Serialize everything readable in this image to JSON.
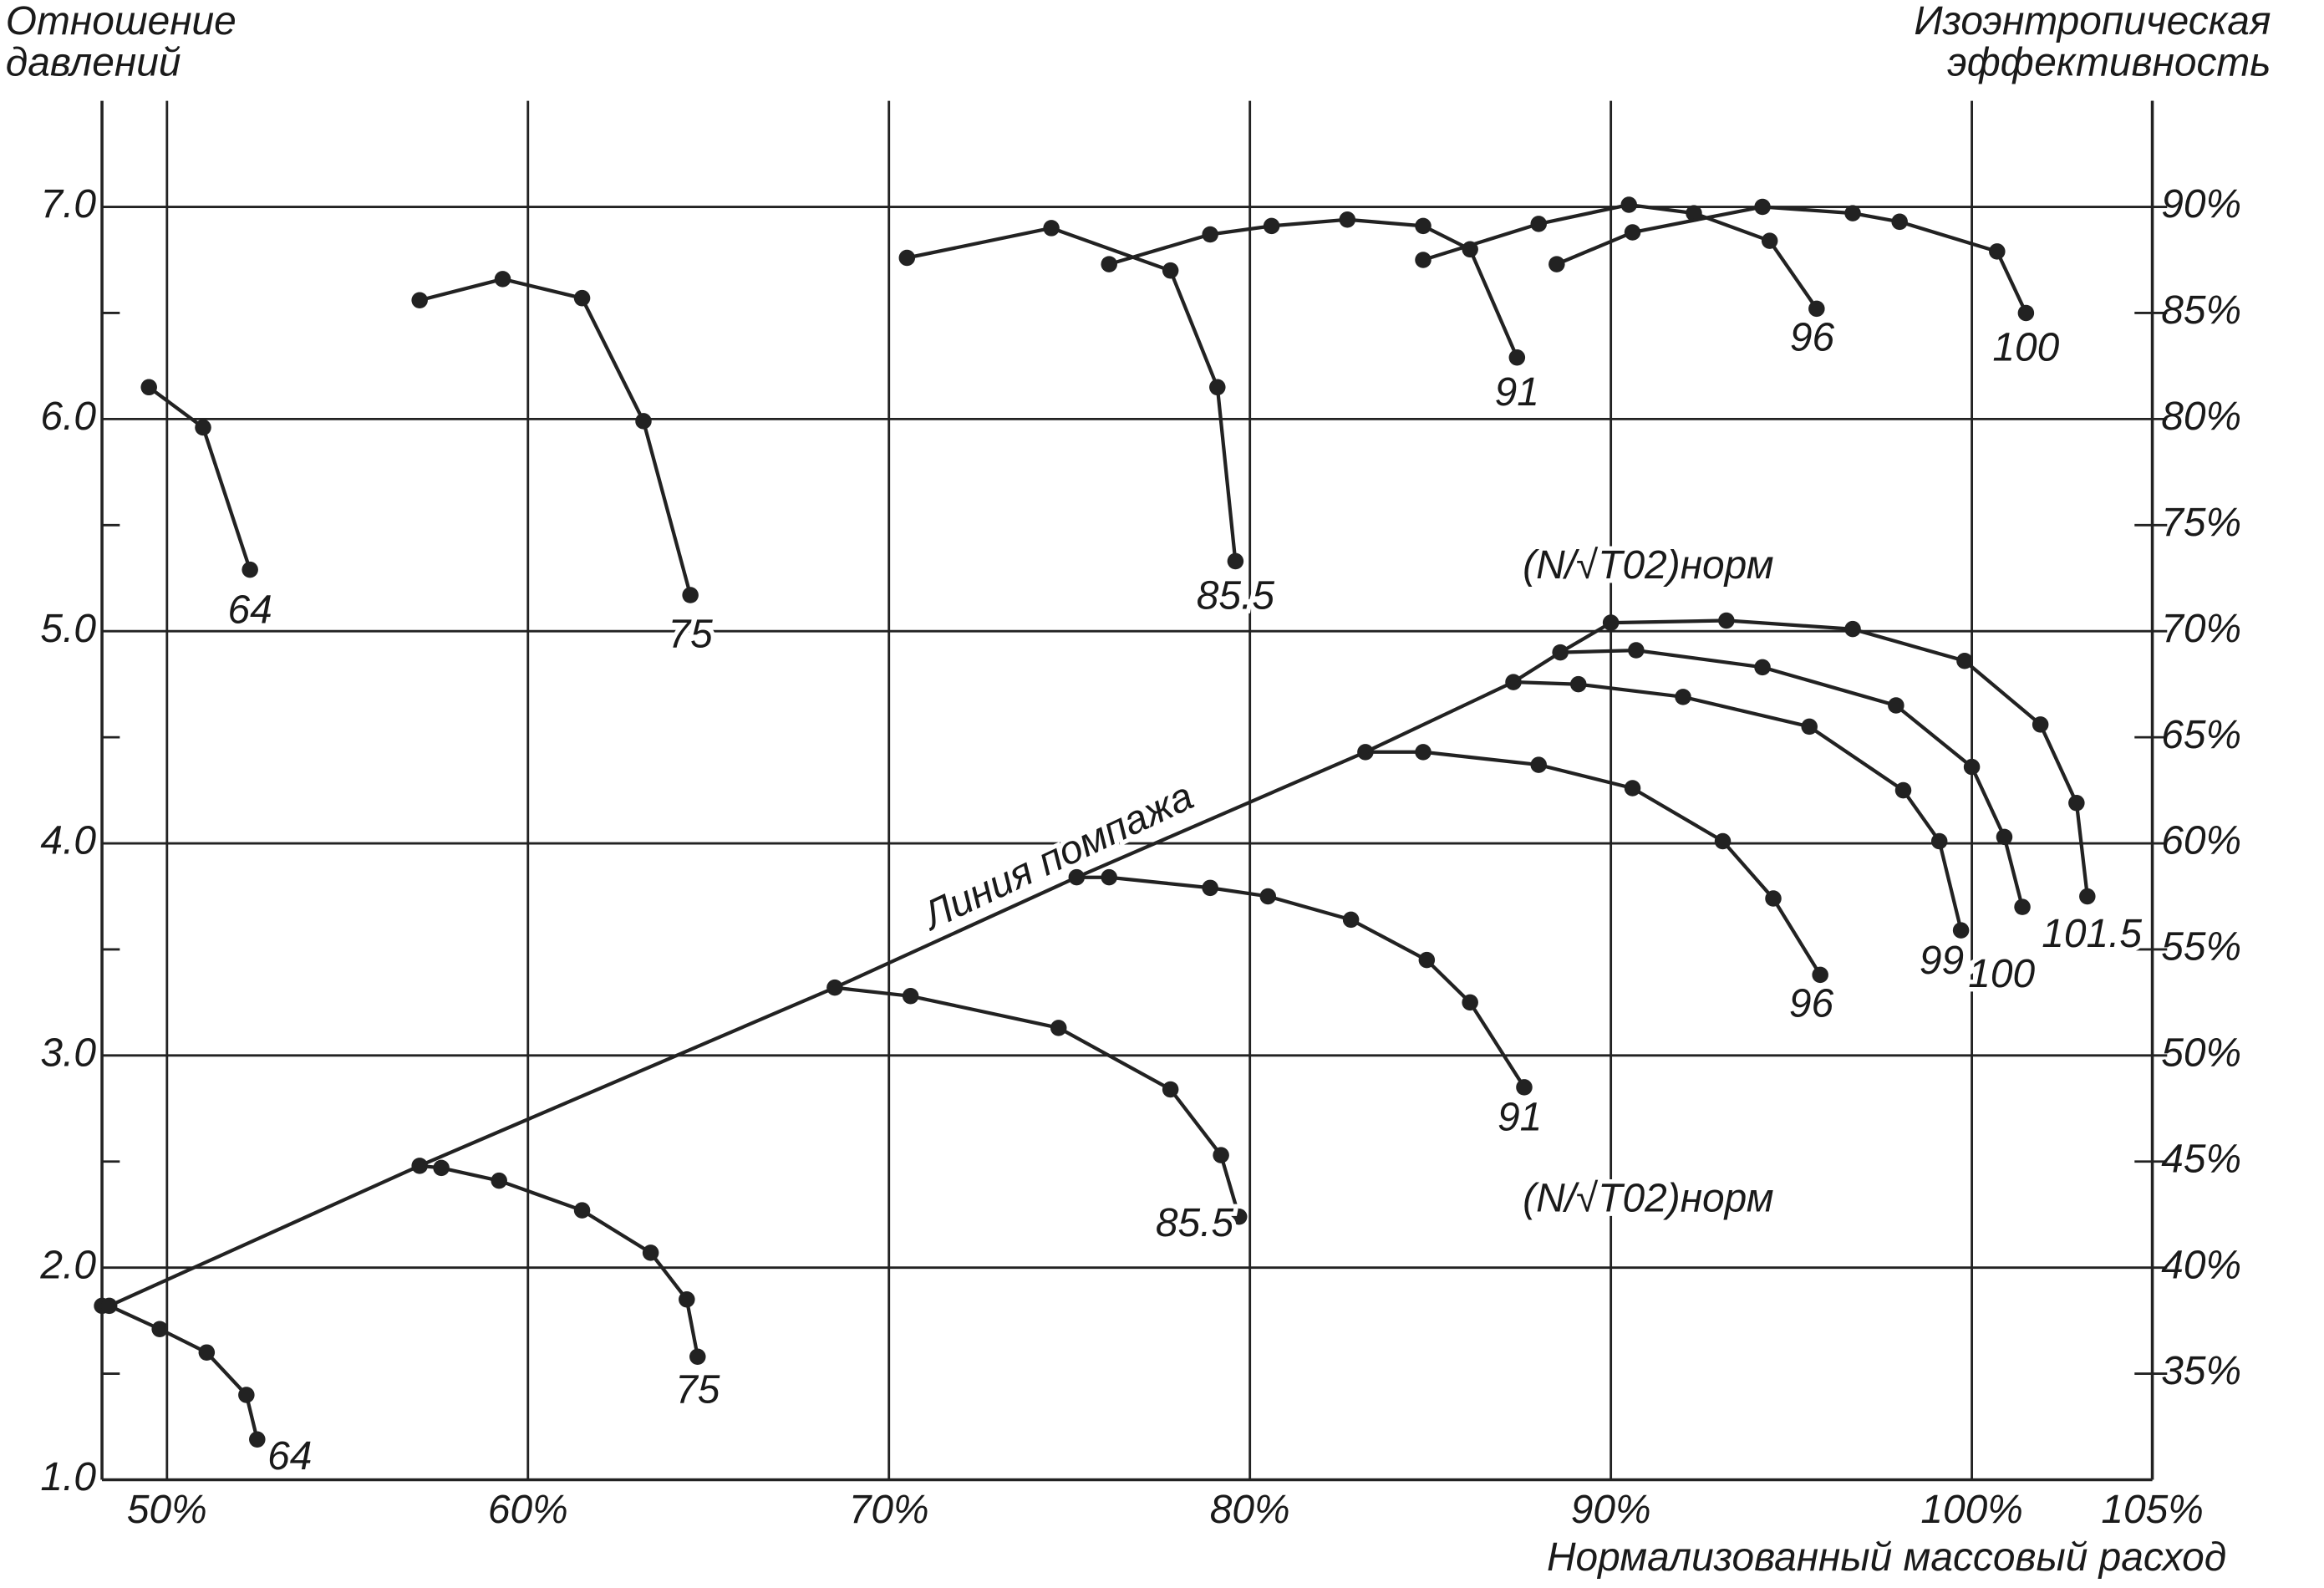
{
  "chart_data": {
    "type": "line",
    "ylabel": [
      "Отношение",
      "давлений"
    ],
    "y2label": [
      "Изоэнтропическая",
      "эффективность"
    ],
    "xlabel": "Нормализованный массовый расход",
    "xlim": [
      48.2,
      105
    ],
    "xticks": [
      {
        "value": 50,
        "label": "50%"
      },
      {
        "value": 60,
        "label": "60%"
      },
      {
        "value": 70,
        "label": "70%"
      },
      {
        "value": 80,
        "label": "80%"
      },
      {
        "value": 90,
        "label": "90%"
      },
      {
        "value": 100,
        "label": "100%"
      },
      {
        "value": 105,
        "label": "105%"
      }
    ],
    "ylim": [
      1.0,
      7.5
    ],
    "yticks": [
      {
        "value": 1,
        "label": "1.0"
      },
      {
        "value": 2,
        "label": "2.0"
      },
      {
        "value": 3,
        "label": "3.0"
      },
      {
        "value": 4,
        "label": "4.0"
      },
      {
        "value": 5,
        "label": "5.0"
      },
      {
        "value": 6,
        "label": "6.0"
      },
      {
        "value": 7,
        "label": "7.0"
      }
    ],
    "y_minor_ticks": [
      1.5,
      2.5,
      3.5,
      4.5,
      5.5,
      6.5
    ],
    "y2lim": [
      30,
      95
    ],
    "y2ticks": [
      {
        "value": 35,
        "label": "35%"
      },
      {
        "value": 40,
        "label": "40%"
      },
      {
        "value": 45,
        "label": "45%"
      },
      {
        "value": 50,
        "label": "50%"
      },
      {
        "value": 55,
        "label": "55%"
      },
      {
        "value": 60,
        "label": "60%"
      },
      {
        "value": 65,
        "label": "65%"
      },
      {
        "value": 70,
        "label": "70%"
      },
      {
        "value": 75,
        "label": "75%"
      },
      {
        "value": 80,
        "label": "80%"
      },
      {
        "value": 85,
        "label": "85%"
      },
      {
        "value": 90,
        "label": "90%"
      }
    ],
    "grid": true,
    "color": "#222222",
    "series": [
      {
        "name": "64",
        "x": [
          48.2,
          48.4,
          49.8,
          51.1,
          52.2,
          52.5
        ],
        "values": [
          1.82,
          1.82,
          1.71,
          1.6,
          1.4,
          1.19
        ]
      },
      {
        "name": "75",
        "x": [
          57.0,
          57.6,
          59.2,
          61.5,
          63.4,
          64.4,
          64.7
        ],
        "values": [
          2.48,
          2.47,
          2.41,
          2.27,
          2.07,
          1.85,
          1.58
        ]
      },
      {
        "name": "85.5",
        "x": [
          68.5,
          70.6,
          74.7,
          77.8,
          79.2,
          79.7
        ],
        "values": [
          3.32,
          3.28,
          3.13,
          2.84,
          2.53,
          2.24
        ]
      },
      {
        "name": "91",
        "x": [
          75.2,
          76.1,
          78.9,
          80.5,
          82.8,
          84.9,
          86.1,
          87.6
        ],
        "values": [
          3.84,
          3.84,
          3.79,
          3.75,
          3.64,
          3.45,
          3.25,
          2.85
        ]
      },
      {
        "name": "96",
        "x": [
          83.2,
          84.8,
          88.0,
          90.6,
          93.1,
          94.5,
          95.8
        ],
        "values": [
          4.43,
          4.43,
          4.37,
          4.26,
          4.01,
          3.74,
          3.38
        ]
      },
      {
        "name": "99",
        "x": [
          87.3,
          89.1,
          92.0,
          95.5,
          98.1,
          99.1,
          99.7
        ],
        "values": [
          4.76,
          4.75,
          4.69,
          4.55,
          4.25,
          4.01,
          3.59
        ]
      },
      {
        "name": "100",
        "x": [
          88.6,
          90.7,
          94.2,
          97.9,
          100.0,
          100.9,
          101.4
        ],
        "values": [
          4.9,
          4.91,
          4.83,
          4.65,
          4.36,
          4.03,
          3.7
        ]
      },
      {
        "name": "101.5",
        "x": [
          90.0,
          93.2,
          96.7,
          99.8,
          101.9,
          102.9,
          103.2
        ],
        "values": [
          5.04,
          5.05,
          5.01,
          4.86,
          4.56,
          4.19,
          3.75
        ]
      },
      {
        "name": "64",
        "axis": "y2",
        "x": [
          49.5,
          51.0,
          52.3
        ],
        "values": [
          81.5,
          79.6,
          72.9
        ]
      },
      {
        "name": "75",
        "axis": "y2",
        "x": [
          57.0,
          59.3,
          61.5,
          63.2,
          64.5
        ],
        "values": [
          85.6,
          86.6,
          85.7,
          79.9,
          71.7
        ]
      },
      {
        "name": "85.5",
        "axis": "y2",
        "x": [
          70.5,
          74.5,
          77.8,
          79.1,
          79.6
        ],
        "values": [
          87.6,
          89.0,
          87.0,
          81.5,
          73.3
        ]
      },
      {
        "name": "91",
        "axis": "y2",
        "x": [
          76.1,
          78.9,
          80.6,
          82.7,
          84.8,
          86.1,
          87.4
        ],
        "values": [
          87.3,
          88.7,
          89.1,
          89.4,
          89.1,
          88.0,
          82.9
        ]
      },
      {
        "name": "96",
        "axis": "y2",
        "x": [
          84.8,
          88.0,
          90.5,
          92.3,
          94.4,
          95.7
        ],
        "values": [
          87.5,
          89.2,
          90.1,
          89.7,
          88.4,
          85.2
        ]
      },
      {
        "name": "100",
        "axis": "y2",
        "x": [
          88.5,
          90.6,
          94.2,
          96.7,
          98.0,
          100.7,
          101.5
        ],
        "values": [
          87.3,
          88.8,
          90.0,
          89.7,
          89.3,
          87.9,
          85.0
        ]
      },
      {
        "name": "Линия помпажа",
        "markers": false,
        "x": [
          48.4,
          57.0,
          68.5,
          75.2,
          83.2,
          87.3,
          88.6,
          90.0
        ],
        "values": [
          1.82,
          2.48,
          3.32,
          3.84,
          4.43,
          4.76,
          4.9,
          5.04
        ]
      }
    ],
    "annotations": [
      "(N/√T02)норм",
      "(N/√T02)норм"
    ]
  }
}
